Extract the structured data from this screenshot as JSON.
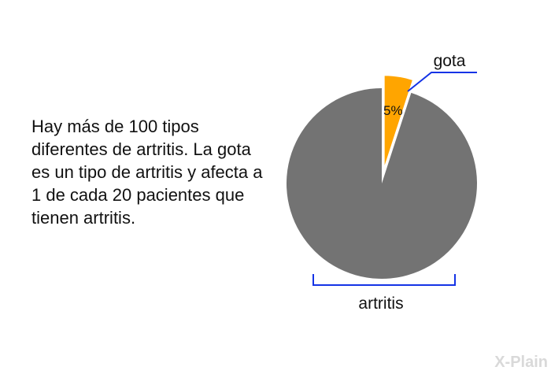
{
  "description_text": "Hay más de 100 tipos diferentes de artritis. La gota es un tipo de artritis y afecta a 1 de cada 20 pacientes que tienen artritis.",
  "logo": "X-Plain",
  "chart_data": {
    "type": "pie",
    "slices": [
      {
        "label": "gota",
        "value": 5,
        "data_label": "5%",
        "color": "#FFA500",
        "exploded": true
      },
      {
        "label": "artritis",
        "value": 95,
        "color": "#737373"
      }
    ],
    "leader_color": "#1433E6"
  }
}
